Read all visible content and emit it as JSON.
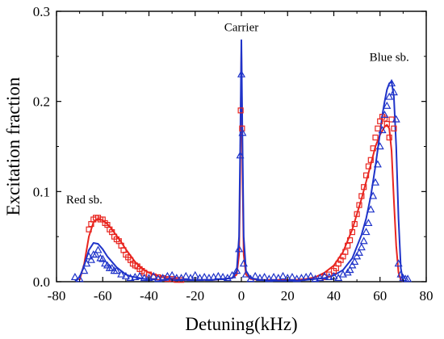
{
  "chart_data": {
    "type": "scatter",
    "title": "",
    "xlabel": "Detuning(kHz)",
    "ylabel": "Excitation fraction",
    "xlim": [
      -80,
      80
    ],
    "ylim": [
      0,
      0.3
    ],
    "xticks": [
      -80,
      -60,
      -40,
      -20,
      0,
      20,
      40,
      60,
      80
    ],
    "xtick_labels": [
      "-80",
      "-60",
      "-40",
      "-20",
      "0",
      "20",
      "40",
      "60",
      "80"
    ],
    "yticks": [
      0,
      0.1,
      0.2,
      0.3
    ],
    "ytick_labels": [
      "0.0",
      "0.1",
      "0.2",
      "0.3"
    ],
    "grid": false,
    "annotations": [
      {
        "text": "Carrier",
        "x": 0,
        "y": 0.278
      },
      {
        "text": "Red sb.",
        "x": -68,
        "y": 0.087
      },
      {
        "text": "Blue sb.",
        "x": 64,
        "y": 0.245
      }
    ],
    "series": [
      {
        "color": "#e8251f",
        "marker": "square",
        "kind": "points",
        "x": [
          -66,
          -65,
          -64,
          -63,
          -62,
          -61,
          -60,
          -59,
          -58,
          -57,
          -56,
          -55,
          -54,
          -53,
          -52,
          -51,
          -50,
          -49,
          -48,
          -47,
          -46,
          -45,
          -44,
          -43,
          -42,
          -40,
          -38,
          -36,
          -34,
          -32,
          -30,
          -28,
          -26,
          -0.3,
          0.3,
          36,
          38,
          40,
          41,
          42,
          43,
          44,
          45,
          46,
          47,
          48,
          49,
          50,
          51,
          52,
          53,
          54,
          55,
          56,
          57,
          58,
          59,
          60,
          61,
          62,
          63,
          64,
          65,
          66
        ],
        "y": [
          0.058,
          0.064,
          0.069,
          0.071,
          0.071,
          0.069,
          0.069,
          0.065,
          0.063,
          0.058,
          0.055,
          0.05,
          0.047,
          0.045,
          0.04,
          0.035,
          0.03,
          0.027,
          0.024,
          0.02,
          0.018,
          0.017,
          0.014,
          0.012,
          0.01,
          0.008,
          0.006,
          0.005,
          0.004,
          0.003,
          0.003,
          0.002,
          0.002,
          0.19,
          0.17,
          0.005,
          0.008,
          0.012,
          0.015,
          0.02,
          0.024,
          0.028,
          0.033,
          0.04,
          0.046,
          0.055,
          0.064,
          0.075,
          0.085,
          0.095,
          0.105,
          0.118,
          0.128,
          0.135,
          0.148,
          0.16,
          0.17,
          0.178,
          0.183,
          0.181,
          0.175,
          0.16,
          0.18,
          0.17
        ]
      },
      {
        "color": "#e8251f",
        "kind": "fit",
        "x": [
          -70,
          -68,
          -66,
          -64,
          -62,
          -60,
          -58,
          -56,
          -54,
          -52,
          -50,
          -48,
          -46,
          -44,
          -42,
          -40,
          -36,
          -32,
          -28,
          -24,
          -20,
          -16,
          -12,
          -8,
          -4,
          -2,
          -1,
          -0.5,
          0,
          0.5,
          1,
          2,
          4,
          8,
          12,
          16,
          20,
          24,
          28,
          32,
          36,
          40,
          44,
          48,
          52,
          56,
          58,
          60,
          62,
          63,
          64,
          65,
          66,
          67,
          68,
          69,
          70
        ],
        "y": [
          0.002,
          0.02,
          0.05,
          0.066,
          0.07,
          0.068,
          0.064,
          0.058,
          0.051,
          0.044,
          0.036,
          0.029,
          0.022,
          0.017,
          0.013,
          0.01,
          0.006,
          0.004,
          0.003,
          0.002,
          0.002,
          0.002,
          0.002,
          0.003,
          0.004,
          0.008,
          0.03,
          0.12,
          0.255,
          0.12,
          0.03,
          0.008,
          0.003,
          0.002,
          0.002,
          0.002,
          0.002,
          0.002,
          0.003,
          0.005,
          0.01,
          0.018,
          0.033,
          0.058,
          0.092,
          0.13,
          0.15,
          0.163,
          0.172,
          0.174,
          0.17,
          0.145,
          0.09,
          0.04,
          0.01,
          0.002,
          0.0
        ]
      },
      {
        "color": "#1f33c9",
        "marker": "triangle",
        "kind": "points",
        "x": [
          -72,
          -70,
          -68,
          -67,
          -66,
          -65,
          -64,
          -63,
          -62,
          -61,
          -60,
          -59,
          -58,
          -57,
          -56,
          -55,
          -54,
          -52,
          -50,
          -48,
          -46,
          -44,
          -42,
          -40,
          -38,
          -36,
          -34,
          -32,
          -30,
          -28,
          -26,
          -24,
          -22,
          -20,
          -18,
          -16,
          -14,
          -12,
          -10,
          -8,
          -6,
          -4,
          -2,
          -1,
          -0.5,
          0,
          0.5,
          1,
          2,
          4,
          6,
          8,
          10,
          12,
          14,
          16,
          18,
          20,
          22,
          24,
          26,
          28,
          30,
          32,
          34,
          36,
          38,
          40,
          42,
          44,
          46,
          47,
          48,
          49,
          50,
          51,
          52,
          53,
          54,
          55,
          56,
          57,
          58,
          59,
          60,
          61,
          62,
          63,
          64,
          65,
          66,
          67,
          68,
          69,
          70,
          71,
          72
        ],
        "y": [
          0.005,
          0.003,
          0.012,
          0.02,
          0.028,
          0.024,
          0.03,
          0.03,
          0.035,
          0.026,
          0.025,
          0.02,
          0.018,
          0.015,
          0.015,
          0.012,
          0.012,
          0.008,
          0.006,
          0.004,
          0.005,
          0.006,
          0.004,
          0.004,
          0.006,
          0.003,
          0.004,
          0.006,
          0.007,
          0.004,
          0.004,
          0.006,
          0.004,
          0.007,
          0.004,
          0.005,
          0.004,
          0.005,
          0.006,
          0.005,
          0.004,
          0.007,
          0.012,
          0.036,
          0.14,
          0.23,
          0.165,
          0.02,
          0.008,
          0.003,
          0.006,
          0.004,
          0.005,
          0.003,
          0.005,
          0.004,
          0.006,
          0.004,
          0.005,
          0.003,
          0.004,
          0.005,
          0.006,
          0.003,
          0.004,
          0.006,
          0.005,
          0.006,
          0.004,
          0.008,
          0.01,
          0.013,
          0.018,
          0.022,
          0.028,
          0.032,
          0.038,
          0.045,
          0.055,
          0.065,
          0.08,
          0.095,
          0.11,
          0.13,
          0.15,
          0.168,
          0.185,
          0.195,
          0.205,
          0.22,
          0.21,
          0.18,
          0.02,
          0.008,
          0.004,
          0.003,
          0.003
        ]
      },
      {
        "color": "#1f33c9",
        "kind": "fit",
        "x": [
          -72,
          -70,
          -68,
          -66,
          -64,
          -62,
          -60,
          -58,
          -56,
          -54,
          -52,
          -50,
          -48,
          -46,
          -44,
          -42,
          -40,
          -36,
          -32,
          -28,
          -24,
          -20,
          -16,
          -12,
          -8,
          -4,
          -2,
          -1,
          -0.5,
          0,
          0.5,
          1,
          2,
          4,
          8,
          12,
          16,
          20,
          24,
          28,
          32,
          36,
          40,
          44,
          48,
          52,
          54,
          56,
          58,
          60,
          61,
          62,
          63,
          64,
          65,
          66,
          67,
          68,
          69,
          70
        ],
        "y": [
          0.001,
          0.005,
          0.018,
          0.035,
          0.043,
          0.042,
          0.036,
          0.028,
          0.022,
          0.016,
          0.012,
          0.008,
          0.006,
          0.005,
          0.004,
          0.003,
          0.003,
          0.002,
          0.002,
          0.002,
          0.002,
          0.002,
          0.002,
          0.002,
          0.003,
          0.004,
          0.012,
          0.05,
          0.15,
          0.268,
          0.15,
          0.05,
          0.012,
          0.004,
          0.002,
          0.001,
          0.001,
          0.001,
          0.001,
          0.002,
          0.003,
          0.004,
          0.007,
          0.013,
          0.026,
          0.052,
          0.07,
          0.095,
          0.128,
          0.165,
          0.185,
          0.2,
          0.213,
          0.22,
          0.222,
          0.205,
          0.15,
          0.07,
          0.015,
          0.0
        ]
      }
    ]
  }
}
